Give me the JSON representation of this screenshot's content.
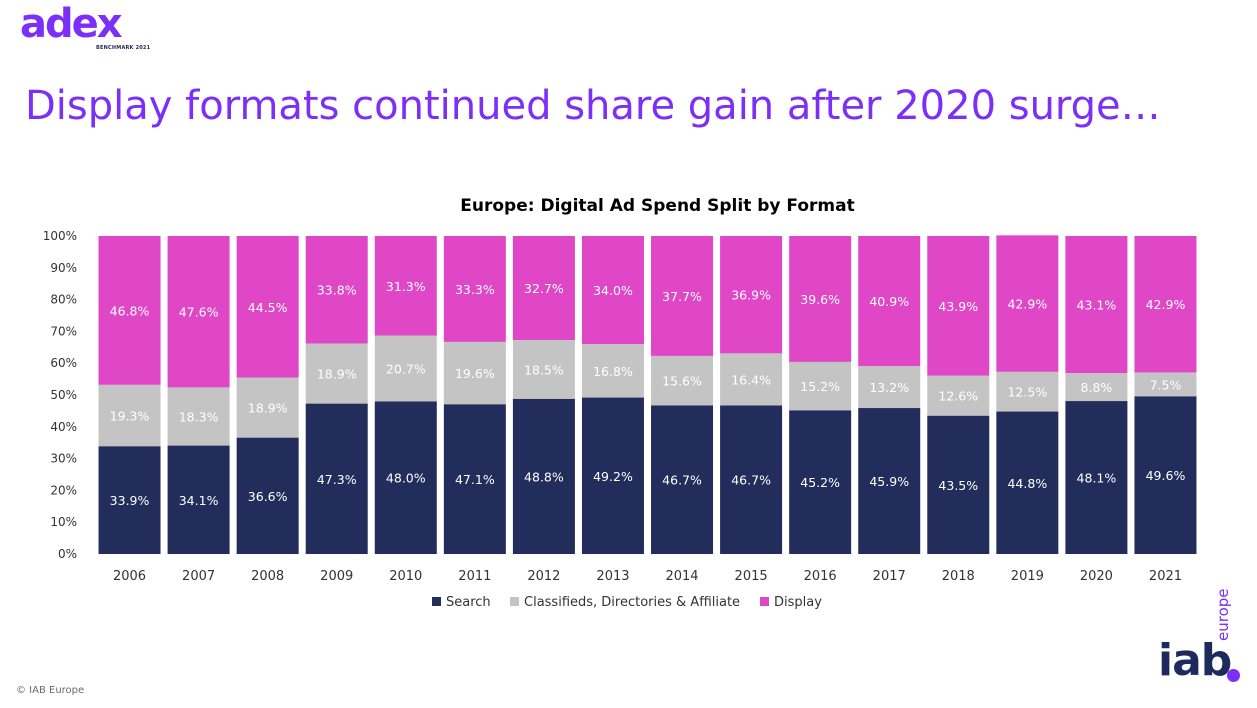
{
  "logo": {
    "word": "adex",
    "sub": "BENCHMARK 2021"
  },
  "headline": "Display formats continued share gain after 2020 surge…",
  "chart_data": {
    "type": "bar",
    "stacked": true,
    "title": "Europe: Digital Ad Spend Split by Format",
    "categories": [
      "2006",
      "2007",
      "2008",
      "2009",
      "2010",
      "2011",
      "2012",
      "2013",
      "2014",
      "2015",
      "2016",
      "2017",
      "2018",
      "2019",
      "2020",
      "2021"
    ],
    "series": [
      {
        "name": "Search",
        "color": "#222d5c",
        "values": [
          33.9,
          34.1,
          36.6,
          47.3,
          48.0,
          47.1,
          48.8,
          49.2,
          46.7,
          46.7,
          45.2,
          45.9,
          43.5,
          44.8,
          48.1,
          49.6
        ],
        "labels": [
          "33.9%",
          "34.1%",
          "36.6%",
          "47.3%",
          "48.0%",
          "47.1%",
          "48.8%",
          "49.2%",
          "46.7%",
          "46.7%",
          "45.2%",
          "45.9%",
          "43.5%",
          "44.8%",
          "48.1%",
          "49.6%"
        ]
      },
      {
        "name": "Classifieds, Directories & Affiliate",
        "color": "#c4c4c4",
        "values": [
          19.3,
          18.3,
          18.9,
          18.9,
          20.7,
          19.6,
          18.5,
          16.8,
          15.6,
          16.4,
          15.2,
          13.2,
          12.6,
          12.5,
          8.8,
          7.5
        ],
        "labels": [
          "19.3%",
          "18.3%",
          "18.9%",
          "18.9%",
          "20.7%",
          "19.6%",
          "18.5%",
          "16.8%",
          "15.6%",
          "16.4%",
          "15.2%",
          "13.2%",
          "12.6%",
          "12.5%",
          "8.8%",
          "7.5%"
        ]
      },
      {
        "name": "Display",
        "color": "#e047c6",
        "values": [
          46.8,
          47.6,
          44.5,
          33.8,
          31.3,
          33.3,
          32.7,
          34.0,
          37.7,
          36.9,
          39.6,
          40.9,
          43.9,
          42.9,
          43.1,
          42.9
        ],
        "labels": [
          "46.8%",
          "47.6%",
          "44.5%",
          "33.8%",
          "31.3%",
          "33.3%",
          "32.7%",
          "34.0%",
          "37.7%",
          "36.9%",
          "39.6%",
          "40.9%",
          "43.9%",
          "42.9%",
          "43.1%",
          "42.9%"
        ]
      }
    ],
    "yticks": [
      "0%",
      "10%",
      "20%",
      "30%",
      "40%",
      "50%",
      "60%",
      "70%",
      "80%",
      "90%",
      "100%"
    ],
    "ylim": [
      0,
      100
    ],
    "legend_position": "bottom",
    "grid": false
  },
  "copyright": "© IAB Europe",
  "iab_logo": {
    "word": "iab",
    "sub": "europe"
  }
}
